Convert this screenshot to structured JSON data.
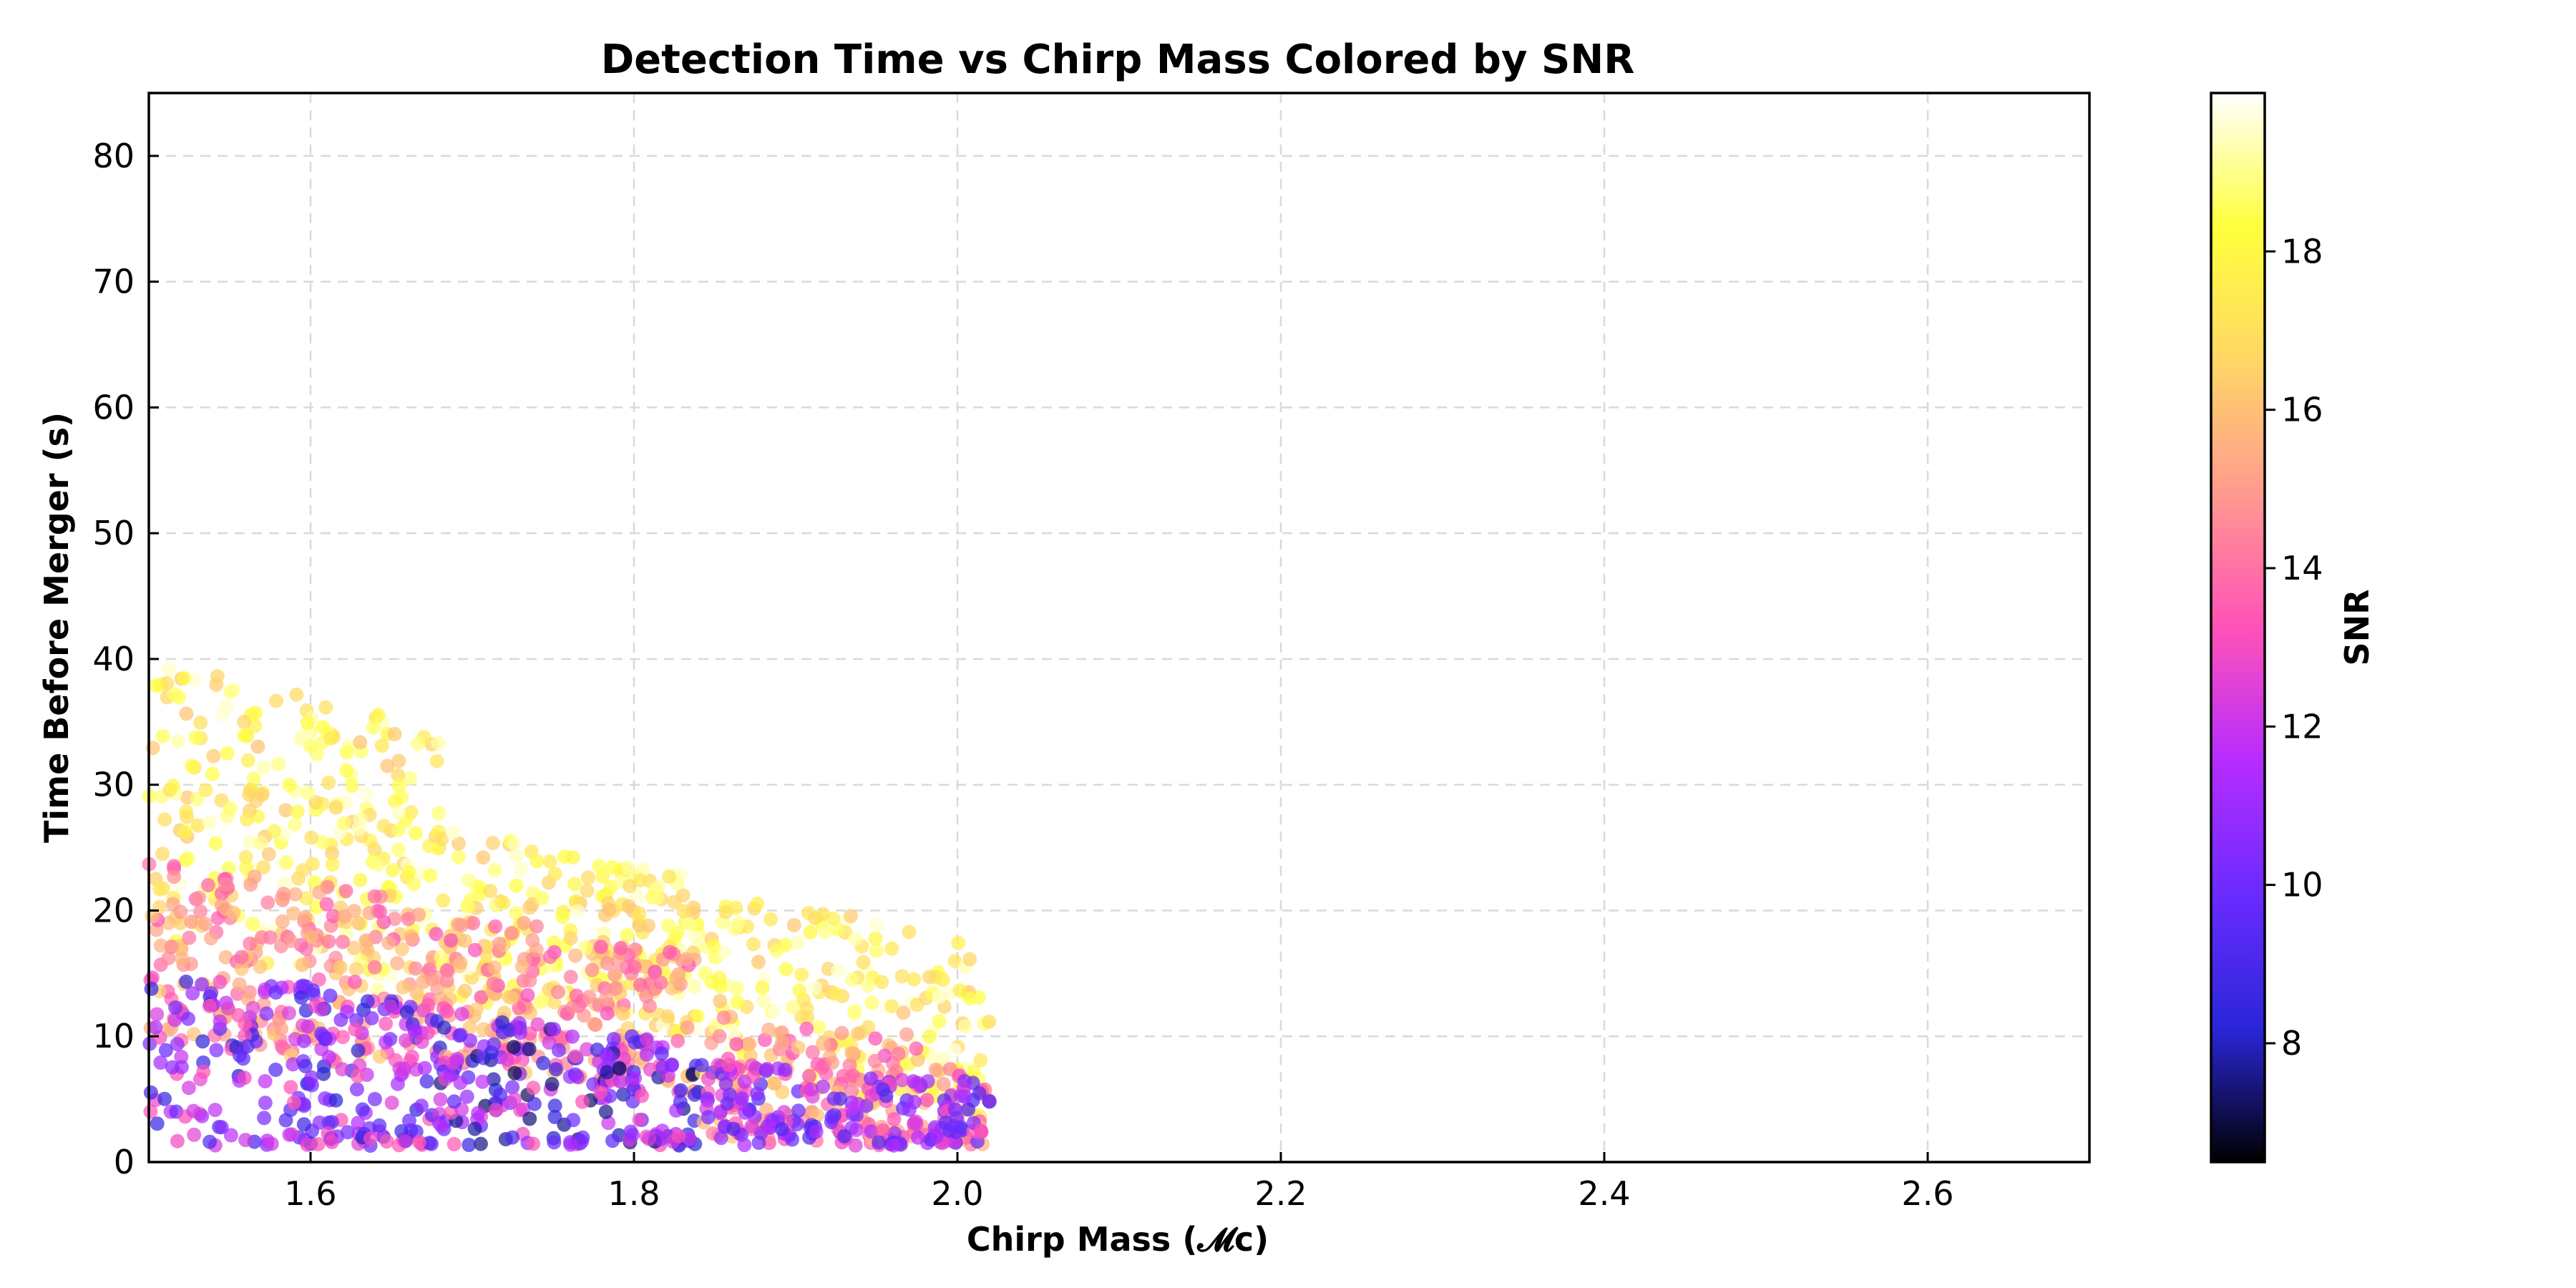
{
  "chart_data": {
    "type": "scatter",
    "title": "Detection Time vs Chirp Mass Colored by SNR",
    "xlabel": "Chirp Mass (𝓜c)",
    "ylabel": "Time Before Merger (s)",
    "xlim": [
      1.5,
      2.7
    ],
    "ylim": [
      0,
      85
    ],
    "xticks": [
      "1.6",
      "1.8",
      "2.0",
      "2.2",
      "2.4",
      "2.6"
    ],
    "yticks": [
      "0",
      "10",
      "20",
      "30",
      "40",
      "50",
      "60",
      "70",
      "80"
    ],
    "grid": true,
    "legend": "none",
    "colorbar": {
      "label": "SNR",
      "range": [
        6.5,
        20
      ],
      "ticks": [
        "8",
        "10",
        "12",
        "14",
        "16",
        "18"
      ],
      "colormap": [
        "#000000",
        "#2a26d9",
        "#6a2bff",
        "#b62cff",
        "#ff52b7",
        "#ff9a8f",
        "#ffd766",
        "#ffff3c",
        "#ffffff"
      ]
    },
    "clusters": [
      {
        "x_range": [
          1.5,
          1.68
        ],
        "high_snr": {
          "y_range": [
            18,
            40
          ],
          "snr_range": [
            16,
            19.8
          ]
        },
        "mid_snr": {
          "y_range": [
            10,
            24
          ],
          "snr_range": [
            13,
            16.5
          ]
        },
        "low_snr": {
          "y_range": [
            1.5,
            16
          ],
          "snr_range": [
            8,
            13.5
          ]
        }
      },
      {
        "x_range": [
          1.68,
          1.84
        ],
        "high_snr": {
          "y_range": [
            13,
            26.5
          ],
          "snr_range": [
            16,
            19.8
          ]
        },
        "mid_snr": {
          "y_range": [
            8,
            20
          ],
          "snr_range": [
            13,
            16.5
          ]
        },
        "low_snr": {
          "y_range": [
            1.5,
            12
          ],
          "snr_range": [
            7,
            13.5
          ]
        }
      },
      {
        "x_range": [
          1.84,
          2.02
        ],
        "high_snr": {
          "y_range": [
            7,
            21.5
          ],
          "snr_range": [
            16,
            19.8
          ]
        },
        "mid_snr": {
          "y_range": [
            2,
            12
          ],
          "snr_range": [
            13,
            16.5
          ]
        },
        "low_snr": {
          "y_range": [
            1.5,
            8
          ],
          "snr_range": [
            9,
            13.5
          ]
        }
      }
    ]
  }
}
